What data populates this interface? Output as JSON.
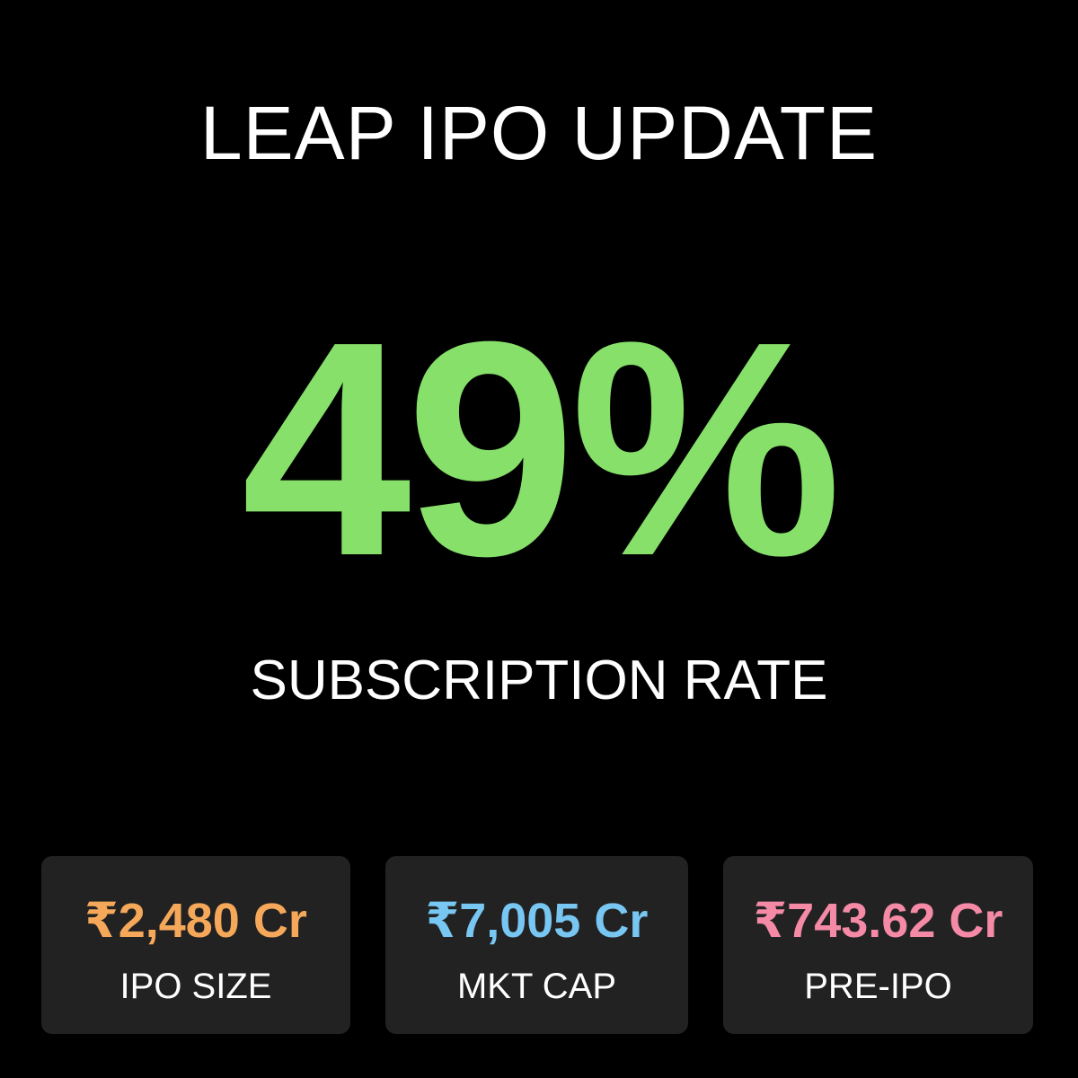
{
  "title": "LEAP IPO UPDATE",
  "headline": {
    "value": "49%",
    "label": "SUBSCRIPTION RATE"
  },
  "cards": [
    {
      "value": "₹2,480 Cr",
      "label": "IPO SIZE"
    },
    {
      "value": "₹7,005 Cr",
      "label": "MKT CAP"
    },
    {
      "value": "₹743.62 Cr",
      "label": "PRE-IPO"
    }
  ]
}
